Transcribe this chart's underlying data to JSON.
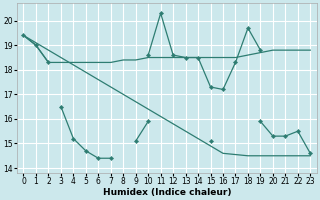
{
  "xlabel": "Humidex (Indice chaleur)",
  "bg_color": "#cce8ec",
  "grid_color": "#ffffff",
  "line_color": "#2e7d72",
  "xlim": [
    -0.5,
    23.5
  ],
  "ylim": [
    13.8,
    20.7
  ],
  "xticks": [
    0,
    1,
    2,
    3,
    4,
    5,
    6,
    7,
    8,
    9,
    10,
    11,
    12,
    13,
    14,
    15,
    16,
    17,
    18,
    19,
    20,
    21,
    22,
    23
  ],
  "yticks": [
    14,
    15,
    16,
    17,
    18,
    19,
    20
  ],
  "series1_y": [
    19.4,
    19.0,
    18.3,
    18.3,
    18.3,
    18.3,
    18.3,
    18.3,
    18.4,
    18.4,
    18.5,
    18.5,
    18.5,
    18.5,
    18.5,
    18.5,
    18.5,
    18.5,
    18.6,
    18.7,
    18.8,
    18.8,
    18.8,
    18.8
  ],
  "series2_y": [
    19.4,
    19.0,
    18.3,
    null,
    null,
    null,
    null,
    null,
    null,
    null,
    18.6,
    20.3,
    18.6,
    18.5,
    18.5,
    17.3,
    17.2,
    18.3,
    19.7,
    18.8,
    null,
    null,
    null,
    null
  ],
  "series3_y": [
    null,
    null,
    null,
    16.5,
    15.2,
    14.7,
    14.4,
    14.4,
    null,
    15.1,
    15.9,
    null,
    null,
    null,
    null,
    15.1,
    null,
    null,
    null,
    15.9,
    15.3,
    15.3,
    15.5,
    14.6
  ],
  "series4_y": [
    19.4,
    19.1,
    18.8,
    18.5,
    18.2,
    17.9,
    17.6,
    17.3,
    17.0,
    16.7,
    16.4,
    16.1,
    15.8,
    15.5,
    15.2,
    14.9,
    14.6,
    14.55,
    14.5,
    14.5,
    14.5,
    14.5,
    14.5,
    14.5
  ]
}
